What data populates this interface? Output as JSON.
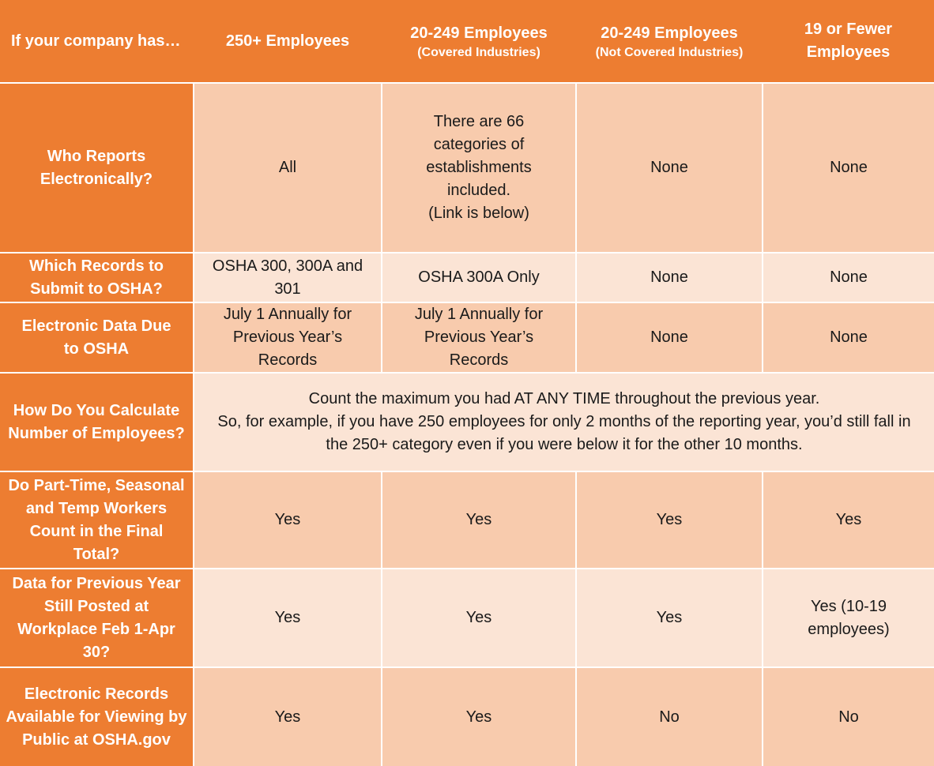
{
  "colors": {
    "header": "#ED7D31",
    "row_dark": "#F8CBAD",
    "row_light": "#FBE4D5"
  },
  "header": [
    {
      "title": "If your company has…",
      "sub": ""
    },
    {
      "title": "250+ Employees",
      "sub": ""
    },
    {
      "title": "20-249 Employees",
      "sub": "(Covered Industries)"
    },
    {
      "title": "20-249 Employees",
      "sub": "(Not Covered Industries)"
    },
    {
      "title": "19 or Fewer Employees",
      "sub": ""
    }
  ],
  "rows": [
    {
      "label": "Who Reports Electronically?",
      "cells": [
        "All",
        "There are 66 categories of establishments included.\n(Link is below)",
        "None",
        "None"
      ]
    },
    {
      "label": "Which Records to Submit to OSHA?",
      "cells": [
        "OSHA 300, 300A and 301",
        "OSHA 300A Only",
        "None",
        "None"
      ]
    },
    {
      "label": "Electronic Data Due to OSHA",
      "cells": [
        "July 1 Annually for Previous Year’s Records",
        "July 1 Annually for Previous Year’s Records",
        "None",
        "None"
      ]
    },
    {
      "label": "How Do You Calculate Number of Employees?",
      "merged": "Count the maximum you had AT ANY TIME throughout the previous year.\nSo, for example, if you have 250 employees for only 2 months of the reporting year, you’d still fall in the 250+ category even if you were below it for the other 10 months."
    },
    {
      "label": "Do Part-Time, Seasonal and Temp Workers Count in the Final Total?",
      "cells": [
        "Yes",
        "Yes",
        "Yes",
        "Yes"
      ]
    },
    {
      "label": "Data for Previous Year Still Posted at Workplace Feb 1-Apr 30?",
      "cells": [
        "Yes",
        "Yes",
        "Yes",
        "Yes (10-19 employees)"
      ]
    },
    {
      "label": "Electronic Records Available for Viewing by Public at OSHA.gov",
      "cells": [
        "Yes",
        "Yes",
        "No",
        "No"
      ]
    }
  ]
}
